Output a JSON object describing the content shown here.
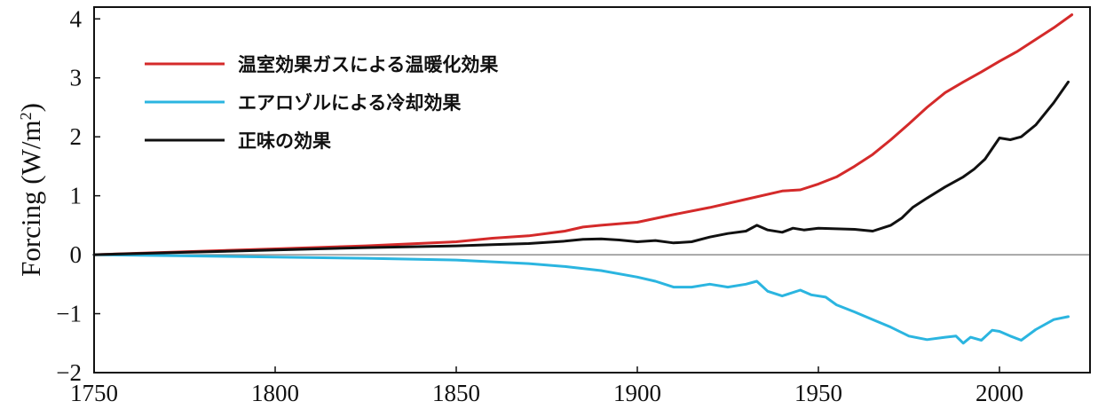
{
  "chart_data": {
    "type": "line",
    "title": "",
    "xlabel": "",
    "ylabel_main": "Forcing (W/m",
    "ylabel_sup": "2",
    "ylabel_close": ")",
    "xlim": [
      1750,
      2025
    ],
    "ylim": [
      -2,
      4.2
    ],
    "xticks": [
      1750,
      1800,
      1850,
      1900,
      1950,
      2000
    ],
    "xtick_labels": [
      "1750",
      "1800",
      "1850",
      "1900",
      "1950",
      "2000"
    ],
    "yticks": [
      4,
      3,
      2,
      1,
      0,
      -1,
      -2
    ],
    "ytick_labels": [
      "4",
      "3",
      "2",
      "1",
      "0",
      "−1",
      "−2"
    ],
    "zero_line": true,
    "legend_position": "top-left",
    "series": [
      {
        "name": "温室効果ガスによる温暖化効果",
        "color": "#d42a2a",
        "x": [
          1750,
          1775,
          1800,
          1825,
          1850,
          1860,
          1870,
          1880,
          1885,
          1890,
          1900,
          1910,
          1920,
          1930,
          1940,
          1945,
          1950,
          1955,
          1960,
          1965,
          1970,
          1975,
          1980,
          1985,
          1990,
          1995,
          2000,
          2005,
          2010,
          2015,
          2020
        ],
        "y": [
          0.0,
          0.05,
          0.1,
          0.15,
          0.22,
          0.28,
          0.32,
          0.4,
          0.47,
          0.5,
          0.55,
          0.68,
          0.8,
          0.94,
          1.08,
          1.1,
          1.2,
          1.32,
          1.5,
          1.7,
          1.95,
          2.22,
          2.5,
          2.75,
          2.93,
          3.1,
          3.28,
          3.45,
          3.65,
          3.85,
          4.07
        ]
      },
      {
        "name": "エアロゾルによる冷却効果",
        "color": "#2bb5e0",
        "x": [
          1750,
          1775,
          1800,
          1825,
          1850,
          1860,
          1870,
          1880,
          1890,
          1900,
          1905,
          1910,
          1915,
          1920,
          1925,
          1930,
          1933,
          1936,
          1940,
          1945,
          1948,
          1952,
          1955,
          1960,
          1965,
          1970,
          1975,
          1980,
          1985,
          1988,
          1990,
          1992,
          1995,
          1998,
          2000,
          2003,
          2006,
          2010,
          2015,
          2019
        ],
        "y": [
          0.0,
          -0.02,
          -0.04,
          -0.06,
          -0.09,
          -0.12,
          -0.15,
          -0.2,
          -0.27,
          -0.38,
          -0.45,
          -0.55,
          -0.55,
          -0.5,
          -0.55,
          -0.5,
          -0.45,
          -0.62,
          -0.7,
          -0.6,
          -0.68,
          -0.72,
          -0.85,
          -0.97,
          -1.1,
          -1.23,
          -1.38,
          -1.44,
          -1.4,
          -1.38,
          -1.5,
          -1.4,
          -1.45,
          -1.28,
          -1.3,
          -1.38,
          -1.45,
          -1.27,
          -1.1,
          -1.05
        ]
      },
      {
        "name": "正味の効果",
        "color": "#111111",
        "x": [
          1750,
          1775,
          1800,
          1825,
          1850,
          1860,
          1870,
          1880,
          1885,
          1890,
          1895,
          1900,
          1905,
          1910,
          1915,
          1920,
          1925,
          1930,
          1933,
          1936,
          1940,
          1943,
          1946,
          1950,
          1955,
          1960,
          1965,
          1970,
          1973,
          1976,
          1980,
          1985,
          1990,
          1993,
          1996,
          2000,
          2003,
          2006,
          2010,
          2015,
          2019
        ],
        "y": [
          0.0,
          0.04,
          0.08,
          0.12,
          0.15,
          0.17,
          0.19,
          0.23,
          0.26,
          0.27,
          0.25,
          0.22,
          0.24,
          0.2,
          0.22,
          0.3,
          0.36,
          0.4,
          0.5,
          0.42,
          0.38,
          0.45,
          0.42,
          0.45,
          0.44,
          0.43,
          0.4,
          0.5,
          0.62,
          0.8,
          0.96,
          1.15,
          1.32,
          1.45,
          1.62,
          1.98,
          1.95,
          2.0,
          2.2,
          2.58,
          2.93
        ]
      }
    ]
  }
}
